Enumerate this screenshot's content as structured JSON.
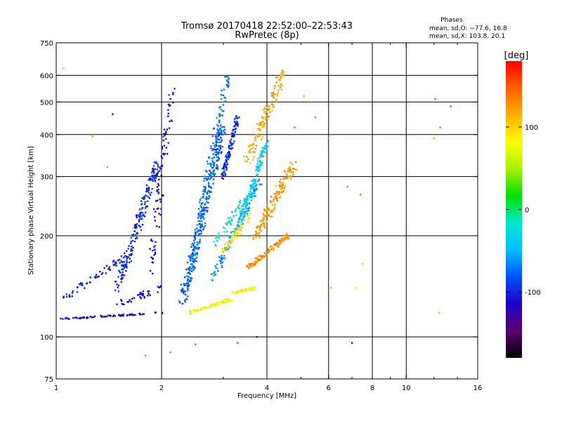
{
  "chart_data": {
    "type": "scatter",
    "title": "Tromsø 20170418 22:52:00–22:53:43",
    "subtitle": "RwPretec (8p)",
    "xlabel": "Frequency [MHz]",
    "ylabel": "Stationary phase Virtual Height [km]",
    "x_scale": "log",
    "y_scale": "log",
    "xlim": [
      1,
      16
    ],
    "ylim": [
      75,
      750
    ],
    "x_ticks": [
      {
        "value": 1,
        "label": "1"
      },
      {
        "value": 2,
        "label": "2"
      },
      {
        "value": 4,
        "label": "4"
      },
      {
        "value": 6,
        "label": "6"
      },
      {
        "value": 8,
        "label": "8"
      },
      {
        "value": 10,
        "label": "10"
      },
      {
        "value": 16,
        "label": "16"
      }
    ],
    "x_minor": [
      3,
      5,
      7,
      9,
      12,
      14
    ],
    "x_grid": [
      2,
      4,
      6,
      8,
      10
    ],
    "y_ticks": [
      {
        "value": 75,
        "label": "75"
      },
      {
        "value": 100,
        "label": "100"
      },
      {
        "value": 200,
        "label": "200"
      },
      {
        "value": 300,
        "label": "300"
      },
      {
        "value": 400,
        "label": "400"
      },
      {
        "value": 500,
        "label": "500"
      },
      {
        "value": 600,
        "label": "600"
      },
      {
        "value": 750,
        "label": "750"
      }
    ],
    "y_grid": [
      100,
      200,
      300,
      400,
      500,
      600
    ],
    "grid": true,
    "stats": {
      "title": "Phases",
      "line1": "mean, sd,O: −77.6, 16.8",
      "line2": "mean, sd,X: 103.8, 20.1"
    },
    "colorbar": {
      "label": "[deg]",
      "range": [
        -180,
        180
      ],
      "ticks": [
        {
          "value": 100,
          "label": "100"
        },
        {
          "value": 0,
          "label": "0"
        },
        {
          "value": -100,
          "label": "-100"
        }
      ],
      "colors": [
        "#000000",
        "#5a0070",
        "#1e00c8",
        "#0050ff",
        "#00bfff",
        "#00e8d0",
        "#00e000",
        "#a8f000",
        "#ffff00",
        "#ffb000",
        "#ff6000",
        "#ff0000"
      ]
    },
    "traces": [
      {
        "name": "",
        "phase": -115,
        "x0": 1.0,
        "x1": 2.05,
        "h0": 113,
        "h1": 118,
        "spread": 1.5,
        "n": 70
      },
      {
        "name": "",
        "phase": -100,
        "x0": 1.05,
        "x1": 1.6,
        "h0": 130,
        "h1": 175,
        "spread": 6,
        "n": 60
      },
      {
        "name": "",
        "phase": -95,
        "x0": 1.5,
        "x1": 1.95,
        "h0": 140,
        "h1": 330,
        "spread": 10,
        "n": 200
      },
      {
        "name": "",
        "phase": -105,
        "x0": 1.85,
        "x1": 2.15,
        "h0": 150,
        "h1": 560,
        "spread": 10,
        "n": 90
      },
      {
        "name": "",
        "phase": -110,
        "x0": 1.5,
        "x1": 2.0,
        "h0": 125,
        "h1": 140,
        "spread": 6,
        "n": 40
      },
      {
        "name": "",
        "phase": -80,
        "x0": 2.3,
        "x1": 3.0,
        "h0": 130,
        "h1": 430,
        "spread": 12,
        "n": 260
      },
      {
        "name": "",
        "phase": -70,
        "x0": 2.4,
        "x1": 3.1,
        "h0": 150,
        "h1": 620,
        "spread": 10,
        "n": 160
      },
      {
        "name": "",
        "phase": -95,
        "x0": 3.0,
        "x1": 3.3,
        "h0": 300,
        "h1": 450,
        "spread": 6,
        "n": 110
      },
      {
        "name": "",
        "phase": -60,
        "x0": 2.8,
        "x1": 3.8,
        "h0": 150,
        "h1": 290,
        "spread": 8,
        "n": 110
      },
      {
        "name": "",
        "phase": -40,
        "x0": 3.3,
        "x1": 4.0,
        "h0": 210,
        "h1": 380,
        "spread": 8,
        "n": 130
      },
      {
        "name": "",
        "phase": 80,
        "x0": 2.4,
        "x1": 3.2,
        "h0": 118,
        "h1": 130,
        "spread": 3,
        "n": 80
      },
      {
        "name": "",
        "phase": 90,
        "x0": 3.2,
        "x1": 3.7,
        "h0": 135,
        "h1": 140,
        "spread": 2,
        "n": 50
      },
      {
        "name": "",
        "phase": 95,
        "x0": 3.0,
        "x1": 3.6,
        "h0": 180,
        "h1": 230,
        "spread": 6,
        "n": 60
      },
      {
        "name": "",
        "phase": 130,
        "x0": 3.5,
        "x1": 4.6,
        "h0": 160,
        "h1": 200,
        "spread": 4,
        "n": 120
      },
      {
        "name": "",
        "phase": 125,
        "x0": 3.7,
        "x1": 4.8,
        "h0": 200,
        "h1": 330,
        "spread": 10,
        "n": 150
      },
      {
        "name": "",
        "phase": 120,
        "x0": 3.5,
        "x1": 4.5,
        "h0": 330,
        "h1": 620,
        "spread": 10,
        "n": 130
      },
      {
        "name": "",
        "phase": -20,
        "x0": 2.8,
        "x1": 3.6,
        "h0": 190,
        "h1": 270,
        "spread": 8,
        "n": 60
      }
    ],
    "outliers": [
      {
        "x": 1.05,
        "y": 630,
        "phase": 110
      },
      {
        "x": 1.45,
        "y": 460,
        "phase": -130
      },
      {
        "x": 1.27,
        "y": 395,
        "phase": 120
      },
      {
        "x": 1.4,
        "y": 320,
        "phase": 130
      },
      {
        "x": 2.12,
        "y": 90,
        "phase": 140
      },
      {
        "x": 2.5,
        "y": 95,
        "phase": 150
      },
      {
        "x": 3.3,
        "y": 96,
        "phase": 160
      },
      {
        "x": 3.75,
        "y": 100,
        "phase": -100
      },
      {
        "x": 5.1,
        "y": 520,
        "phase": 120
      },
      {
        "x": 5.5,
        "y": 450,
        "phase": 140
      },
      {
        "x": 6.0,
        "y": 390,
        "phase": 130
      },
      {
        "x": 6.8,
        "y": 280,
        "phase": 0
      },
      {
        "x": 7.4,
        "y": 265,
        "phase": 140
      },
      {
        "x": 6.1,
        "y": 140,
        "phase": 120
      },
      {
        "x": 7.2,
        "y": 140,
        "phase": 90
      },
      {
        "x": 7.5,
        "y": 165,
        "phase": 100
      },
      {
        "x": 7.0,
        "y": 96,
        "phase": -130
      },
      {
        "x": 12.1,
        "y": 510,
        "phase": 150
      },
      {
        "x": 12.5,
        "y": 420,
        "phase": 140
      },
      {
        "x": 12.0,
        "y": 390,
        "phase": 120
      },
      {
        "x": 13.4,
        "y": 485,
        "phase": -60
      },
      {
        "x": 12.4,
        "y": 118,
        "phase": 110
      },
      {
        "x": 1.8,
        "y": 88,
        "phase": 140
      },
      {
        "x": 4.8,
        "y": 420,
        "phase": 20
      }
    ]
  }
}
